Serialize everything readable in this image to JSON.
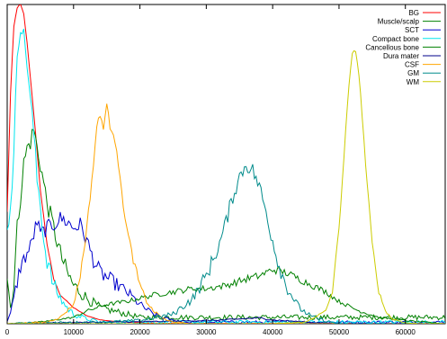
{
  "chart_data": {
    "type": "line",
    "title": "",
    "xlabel": "",
    "ylabel": "",
    "xlim": [
      0,
      66000
    ],
    "ylim": [
      0,
      1.0
    ],
    "y_ticks_labeled": false,
    "grid": false,
    "legend_position": "top-right",
    "x_ticks": [
      {
        "value": 0,
        "label": "0"
      },
      {
        "value": 10000,
        "label": "10000"
      },
      {
        "value": 20000,
        "label": "20000"
      },
      {
        "value": 30000,
        "label": "30000"
      },
      {
        "value": 40000,
        "label": "40000"
      },
      {
        "value": 50000,
        "label": "50000"
      },
      {
        "value": 60000,
        "label": "60000"
      }
    ],
    "series": [
      {
        "name": "BG",
        "color": "#ff0000",
        "noise": 0.002,
        "x": [
          0,
          500,
          1000,
          1500,
          2000,
          2500,
          3000,
          4000,
          5000,
          6000,
          7000,
          8000,
          10000,
          12000,
          14000,
          17000,
          20000,
          25000
        ],
        "y": [
          0.35,
          0.72,
          0.93,
          0.99,
          1.0,
          0.97,
          0.88,
          0.66,
          0.42,
          0.25,
          0.14,
          0.09,
          0.05,
          0.025,
          0.012,
          0.006,
          0.003,
          0.001
        ]
      },
      {
        "name": "Muscle/scalp",
        "color": "#008000",
        "noise": 0.03,
        "x": [
          0,
          500,
          1000,
          1500,
          2000,
          2500,
          3000,
          3500,
          4000,
          4500,
          5000,
          5500,
          6000,
          7000,
          8000,
          9000,
          10000,
          12000,
          14000,
          16000,
          18000,
          20000
        ],
        "y": [
          0.15,
          0.05,
          0.12,
          0.3,
          0.4,
          0.5,
          0.55,
          0.57,
          0.61,
          0.55,
          0.5,
          0.44,
          0.38,
          0.3,
          0.22,
          0.16,
          0.12,
          0.08,
          0.05,
          0.04,
          0.03,
          0.02
        ]
      },
      {
        "name": "SCT",
        "color": "#0000cd",
        "noise": 0.025,
        "x": [
          0,
          500,
          1000,
          1500,
          2000,
          2500,
          3000,
          3500,
          4000,
          4500,
          5000,
          6000,
          7000,
          8000,
          9000,
          10000,
          11000,
          12000,
          13000,
          14000,
          16000,
          18000,
          20000,
          22000,
          24000,
          26000
        ],
        "y": [
          0.01,
          0.03,
          0.08,
          0.13,
          0.18,
          0.2,
          0.22,
          0.24,
          0.28,
          0.32,
          0.28,
          0.3,
          0.31,
          0.33,
          0.32,
          0.3,
          0.31,
          0.26,
          0.2,
          0.16,
          0.13,
          0.1,
          0.06,
          0.03,
          0.015,
          0.005
        ]
      },
      {
        "name": "Compact bone",
        "color": "#00e5ee",
        "noise": 0.03,
        "x": [
          0,
          500,
          1000,
          1500,
          2000,
          2500,
          3000,
          3500,
          4000,
          4500,
          5000,
          5500,
          6000,
          7000,
          8000,
          9000,
          10000,
          12000,
          14000
        ],
        "y": [
          0.28,
          0.38,
          0.52,
          0.85,
          0.94,
          0.9,
          0.82,
          0.7,
          0.6,
          0.45,
          0.38,
          0.26,
          0.2,
          0.12,
          0.08,
          0.05,
          0.03,
          0.015,
          0.005
        ]
      },
      {
        "name": "Cancellous bone",
        "color": "#008000",
        "noise": 0.012,
        "x": [
          0,
          5000,
          10000,
          12000,
          15000,
          18000,
          20000,
          22000,
          25000,
          28000,
          30000,
          33000,
          36000,
          38000,
          40000,
          42000,
          44000,
          46000,
          48000,
          50000,
          53000,
          56000,
          60000,
          64000,
          66000
        ],
        "y": [
          0.0,
          0.005,
          0.02,
          0.04,
          0.06,
          0.07,
          0.08,
          0.09,
          0.1,
          0.11,
          0.11,
          0.12,
          0.14,
          0.15,
          0.17,
          0.16,
          0.14,
          0.12,
          0.1,
          0.07,
          0.04,
          0.02,
          0.01,
          0.003,
          0.0
        ]
      },
      {
        "name": "Dura mater",
        "color": "#00008b",
        "noise": 0.01,
        "x": [
          0,
          5000,
          10000,
          15000,
          20000,
          25000,
          30000,
          33000,
          35000,
          38000,
          40000,
          43000,
          46000,
          50000
        ],
        "y": [
          0.0,
          0.002,
          0.004,
          0.005,
          0.006,
          0.008,
          0.01,
          0.012,
          0.015,
          0.018,
          0.012,
          0.008,
          0.004,
          0.0
        ]
      },
      {
        "name": "CSF",
        "color": "#ffa500",
        "noise": 0.012,
        "x": [
          0,
          6000,
          8000,
          10000,
          11000,
          12000,
          13000,
          13500,
          14000,
          14500,
          15000,
          15500,
          16000,
          16500,
          17000,
          18000,
          19000,
          20000,
          21000,
          22000,
          24000,
          26000,
          28000
        ],
        "y": [
          0.0,
          0.005,
          0.02,
          0.06,
          0.15,
          0.3,
          0.5,
          0.62,
          0.65,
          0.62,
          0.68,
          0.62,
          0.6,
          0.55,
          0.45,
          0.3,
          0.2,
          0.12,
          0.07,
          0.04,
          0.01,
          0.003,
          0.0
        ]
      },
      {
        "name": "GM",
        "color": "#008b8b",
        "noise": 0.025,
        "x": [
          0,
          15000,
          20000,
          25000,
          28000,
          30000,
          32000,
          33000,
          34000,
          35000,
          36000,
          37000,
          38000,
          39000,
          40000,
          41000,
          42000,
          44000,
          46000,
          48000,
          50000
        ],
        "y": [
          0.0,
          0.005,
          0.01,
          0.03,
          0.08,
          0.15,
          0.25,
          0.32,
          0.4,
          0.46,
          0.5,
          0.48,
          0.43,
          0.35,
          0.26,
          0.18,
          0.12,
          0.05,
          0.02,
          0.008,
          0.0
        ]
      },
      {
        "name": "WM",
        "color": "#cccc00",
        "noise": 0.008,
        "x": [
          0,
          40000,
          45000,
          48000,
          49000,
          50000,
          51000,
          51500,
          52000,
          52500,
          53000,
          53500,
          54000,
          55000,
          56000,
          57000,
          58000,
          60000,
          62000
        ],
        "y": [
          0.0,
          0.0,
          0.005,
          0.04,
          0.1,
          0.3,
          0.6,
          0.75,
          0.84,
          0.86,
          0.78,
          0.65,
          0.5,
          0.25,
          0.1,
          0.04,
          0.015,
          0.003,
          0.0
        ]
      }
    ]
  }
}
